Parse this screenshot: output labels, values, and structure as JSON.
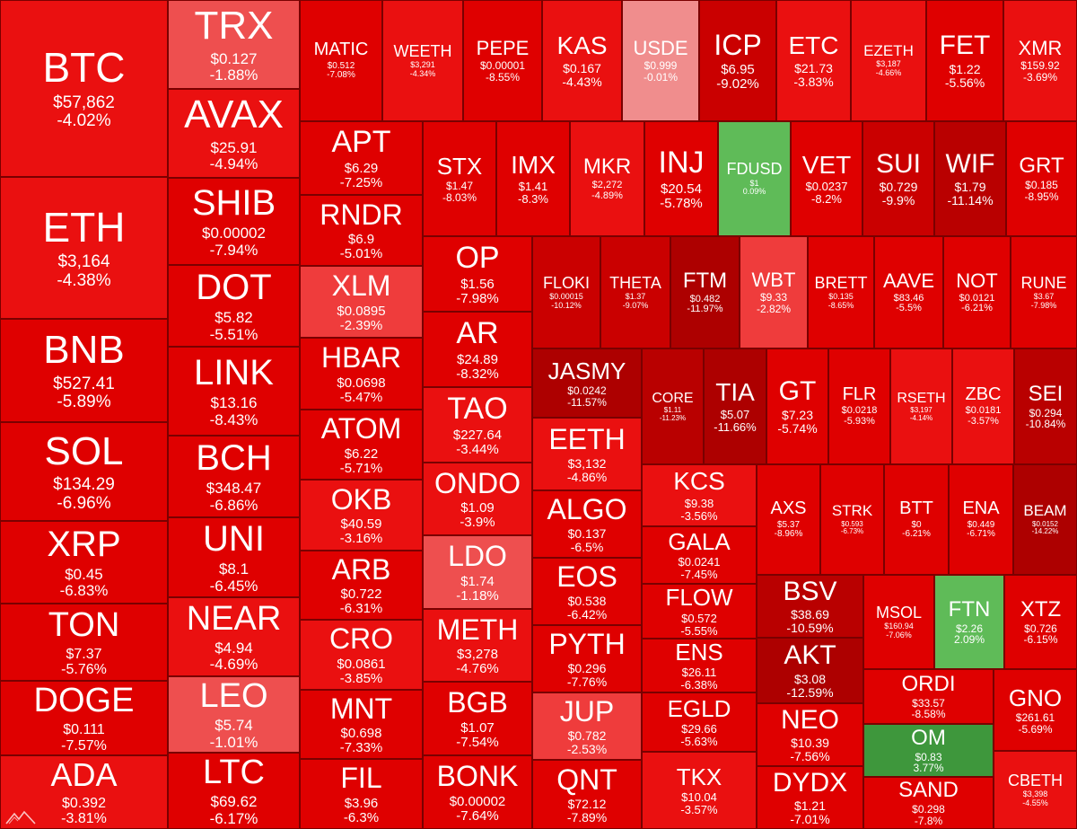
{
  "tiles": [
    {
      "sym": "BTC",
      "price": "$57,862",
      "chg": "-4.02%"
    },
    {
      "sym": "ETH",
      "price": "$3,164",
      "chg": "-4.38%"
    },
    {
      "sym": "BNB",
      "price": "$527.41",
      "chg": "-5.89%"
    },
    {
      "sym": "SOL",
      "price": "$134.29",
      "chg": "-6.96%"
    },
    {
      "sym": "XRP",
      "price": "$0.45",
      "chg": "-6.83%"
    },
    {
      "sym": "TON",
      "price": "$7.37",
      "chg": "-5.76%"
    },
    {
      "sym": "DOGE",
      "price": "$0.111",
      "chg": "-7.57%"
    },
    {
      "sym": "ADA",
      "price": "$0.392",
      "chg": "-3.81%"
    },
    {
      "sym": "TRX",
      "price": "$0.127",
      "chg": "-1.88%"
    },
    {
      "sym": "AVAX",
      "price": "$25.91",
      "chg": "-4.94%"
    },
    {
      "sym": "SHIB",
      "price": "$0.00002",
      "chg": "-7.94%"
    },
    {
      "sym": "DOT",
      "price": "$5.82",
      "chg": "-5.51%"
    },
    {
      "sym": "LINK",
      "price": "$13.16",
      "chg": "-8.43%"
    },
    {
      "sym": "BCH",
      "price": "$348.47",
      "chg": "-6.86%"
    },
    {
      "sym": "UNI",
      "price": "$8.1",
      "chg": "-6.45%"
    },
    {
      "sym": "NEAR",
      "price": "$4.94",
      "chg": "-4.69%"
    },
    {
      "sym": "LEO",
      "price": "$5.74",
      "chg": "-1.01%"
    },
    {
      "sym": "LTC",
      "price": "$69.62",
      "chg": "-6.17%"
    },
    {
      "sym": "MATIC",
      "price": "$0.512",
      "chg": "-7.08%"
    },
    {
      "sym": "WEETH",
      "price": "$3,291",
      "chg": "-4.34%"
    },
    {
      "sym": "PEPE",
      "price": "$0.00001",
      "chg": "-8.55%"
    },
    {
      "sym": "KAS",
      "price": "$0.167",
      "chg": "-4.43%"
    },
    {
      "sym": "USDE",
      "price": "$0.999",
      "chg": "-0.01%"
    },
    {
      "sym": "ICP",
      "price": "$6.95",
      "chg": "-9.02%"
    },
    {
      "sym": "ETC",
      "price": "$21.73",
      "chg": "-3.83%"
    },
    {
      "sym": "EZETH",
      "price": "$3,187",
      "chg": "-4.66%"
    },
    {
      "sym": "FET",
      "price": "$1.22",
      "chg": "-5.56%"
    },
    {
      "sym": "XMR",
      "price": "$159.92",
      "chg": "-3.69%"
    },
    {
      "sym": "APT",
      "price": "$6.29",
      "chg": "-7.25%"
    },
    {
      "sym": "RNDR",
      "price": "$6.9",
      "chg": "-5.01%"
    },
    {
      "sym": "XLM",
      "price": "$0.0895",
      "chg": "-2.39%"
    },
    {
      "sym": "HBAR",
      "price": "$0.0698",
      "chg": "-5.47%"
    },
    {
      "sym": "ATOM",
      "price": "$6.22",
      "chg": "-5.71%"
    },
    {
      "sym": "OKB",
      "price": "$40.59",
      "chg": "-3.16%"
    },
    {
      "sym": "ARB",
      "price": "$0.722",
      "chg": "-6.31%"
    },
    {
      "sym": "CRO",
      "price": "$0.0861",
      "chg": "-3.85%"
    },
    {
      "sym": "MNT",
      "price": "$0.698",
      "chg": "-7.33%"
    },
    {
      "sym": "FIL",
      "price": "$3.96",
      "chg": "-6.3%"
    },
    {
      "sym": "STX",
      "price": "$1.47",
      "chg": "-8.03%"
    },
    {
      "sym": "IMX",
      "price": "$1.41",
      "chg": "-8.3%"
    },
    {
      "sym": "MKR",
      "price": "$2,272",
      "chg": "-4.89%"
    },
    {
      "sym": "INJ",
      "price": "$20.54",
      "chg": "-5.78%"
    },
    {
      "sym": "FDUSD",
      "price": "$1",
      "chg": "0.09%"
    },
    {
      "sym": "VET",
      "price": "$0.0237",
      "chg": "-8.2%"
    },
    {
      "sym": "SUI",
      "price": "$0.729",
      "chg": "-9.9%"
    },
    {
      "sym": "WIF",
      "price": "$1.79",
      "chg": "-11.14%"
    },
    {
      "sym": "GRT",
      "price": "$0.185",
      "chg": "-8.95%"
    },
    {
      "sym": "OP",
      "price": "$1.56",
      "chg": "-7.98%"
    },
    {
      "sym": "AR",
      "price": "$24.89",
      "chg": "-8.32%"
    },
    {
      "sym": "TAO",
      "price": "$227.64",
      "chg": "-3.44%"
    },
    {
      "sym": "ONDO",
      "price": "$1.09",
      "chg": "-3.9%"
    },
    {
      "sym": "LDO",
      "price": "$1.74",
      "chg": "-1.18%"
    },
    {
      "sym": "METH",
      "price": "$3,278",
      "chg": "-4.76%"
    },
    {
      "sym": "BGB",
      "price": "$1.07",
      "chg": "-7.54%"
    },
    {
      "sym": "BONK",
      "price": "$0.00002",
      "chg": "-7.64%"
    },
    {
      "sym": "FLOKI",
      "price": "$0.00015",
      "chg": "-10.12%"
    },
    {
      "sym": "THETA",
      "price": "$1.37",
      "chg": "-9.07%"
    },
    {
      "sym": "FTM",
      "price": "$0.482",
      "chg": "-11.97%"
    },
    {
      "sym": "WBT",
      "price": "$9.33",
      "chg": "-2.82%"
    },
    {
      "sym": "BRETT",
      "price": "$0.135",
      "chg": "-8.65%"
    },
    {
      "sym": "AAVE",
      "price": "$83.46",
      "chg": "-5.5%"
    },
    {
      "sym": "NOT",
      "price": "$0.0121",
      "chg": "-6.21%"
    },
    {
      "sym": "RUNE",
      "price": "$3.67",
      "chg": "-7.98%"
    },
    {
      "sym": "JASMY",
      "price": "$0.0242",
      "chg": "-11.57%"
    },
    {
      "sym": "EETH",
      "price": "$3,132",
      "chg": "-4.86%"
    },
    {
      "sym": "ALGO",
      "price": "$0.137",
      "chg": "-6.5%"
    },
    {
      "sym": "EOS",
      "price": "$0.538",
      "chg": "-6.42%"
    },
    {
      "sym": "PYTH",
      "price": "$0.296",
      "chg": "-7.76%"
    },
    {
      "sym": "JUP",
      "price": "$0.782",
      "chg": "-2.53%"
    },
    {
      "sym": "QNT",
      "price": "$72.12",
      "chg": "-7.89%"
    },
    {
      "sym": "CORE",
      "price": "$1.11",
      "chg": "-11.23%"
    },
    {
      "sym": "TIA",
      "price": "$5.07",
      "chg": "-11.66%"
    },
    {
      "sym": "GT",
      "price": "$7.23",
      "chg": "-5.74%"
    },
    {
      "sym": "FLR",
      "price": "$0.0218",
      "chg": "-5.93%"
    },
    {
      "sym": "RSETH",
      "price": "$3,197",
      "chg": "-4.14%"
    },
    {
      "sym": "ZBC",
      "price": "$0.0181",
      "chg": "-3.57%"
    },
    {
      "sym": "SEI",
      "price": "$0.294",
      "chg": "-10.84%"
    },
    {
      "sym": "KCS",
      "price": "$9.38",
      "chg": "-3.56%"
    },
    {
      "sym": "GALA",
      "price": "$0.0241",
      "chg": "-7.45%"
    },
    {
      "sym": "FLOW",
      "price": "$0.572",
      "chg": "-5.55%"
    },
    {
      "sym": "ENS",
      "price": "$26.11",
      "chg": "-6.38%"
    },
    {
      "sym": "EGLD",
      "price": "$29.66",
      "chg": "-5.63%"
    },
    {
      "sym": "TKX",
      "price": "$10.04",
      "chg": "-3.57%"
    },
    {
      "sym": "AXS",
      "price": "$5.37",
      "chg": "-8.96%"
    },
    {
      "sym": "STRK",
      "price": "$0.593",
      "chg": "-6.73%"
    },
    {
      "sym": "BTT",
      "price": "$0",
      "chg": "-6.21%"
    },
    {
      "sym": "ENA",
      "price": "$0.449",
      "chg": "-6.71%"
    },
    {
      "sym": "BEAM",
      "price": "$0.0152",
      "chg": "-14.22%"
    },
    {
      "sym": "BSV",
      "price": "$38.69",
      "chg": "-10.59%"
    },
    {
      "sym": "AKT",
      "price": "$3.08",
      "chg": "-12.59%"
    },
    {
      "sym": "NEO",
      "price": "$10.39",
      "chg": "-7.56%"
    },
    {
      "sym": "DYDX",
      "price": "$1.21",
      "chg": "-7.01%"
    },
    {
      "sym": "MSOL",
      "price": "$160.94",
      "chg": "-7.06%"
    },
    {
      "sym": "FTN",
      "price": "$2.26",
      "chg": "2.09%"
    },
    {
      "sym": "XTZ",
      "price": "$0.726",
      "chg": "-6.15%"
    },
    {
      "sym": "ORDI",
      "price": "$33.57",
      "chg": "-8.58%"
    },
    {
      "sym": "GNO",
      "price": "$261.61",
      "chg": "-5.69%"
    },
    {
      "sym": "OM",
      "price": "$0.83",
      "chg": "3.77%"
    },
    {
      "sym": "SAND",
      "price": "$0.298",
      "chg": "-7.8%"
    },
    {
      "sym": "CBETH",
      "price": "$3,398",
      "chg": "-4.55%"
    }
  ],
  "logo_icon": "mountain-logo-icon"
}
